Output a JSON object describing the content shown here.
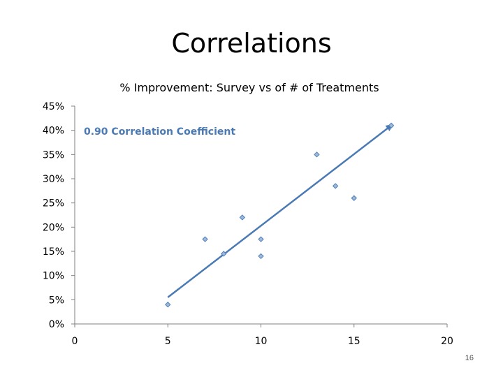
{
  "slide": {
    "title": "Correlations",
    "page_number": "16"
  },
  "chart_data": {
    "type": "scatter",
    "title": "% Improvement: Survey vs of # of Treatments",
    "xlabel": "",
    "ylabel": "",
    "xlim": [
      0,
      20
    ],
    "ylim": [
      0,
      0.45
    ],
    "x_ticks": [
      0,
      5,
      10,
      15,
      20
    ],
    "y_ticks": [
      0,
      0.05,
      0.1,
      0.15,
      0.2,
      0.25,
      0.3,
      0.35,
      0.4,
      0.45
    ],
    "x_tick_labels": [
      "0",
      "5",
      "10",
      "15",
      "20"
    ],
    "y_tick_labels": [
      "0%",
      "5%",
      "10%",
      "15%",
      "20%",
      "25%",
      "30%",
      "35%",
      "40%",
      "45%"
    ],
    "grid": false,
    "series": [
      {
        "name": "% Improvement",
        "points": [
          {
            "x": 5,
            "y": 0.04
          },
          {
            "x": 7,
            "y": 0.175
          },
          {
            "x": 8,
            "y": 0.145
          },
          {
            "x": 9,
            "y": 0.22
          },
          {
            "x": 10,
            "y": 0.175
          },
          {
            "x": 10,
            "y": 0.14
          },
          {
            "x": 13,
            "y": 0.35
          },
          {
            "x": 14,
            "y": 0.285
          },
          {
            "x": 15,
            "y": 0.26
          },
          {
            "x": 17,
            "y": 0.41
          }
        ]
      }
    ],
    "trendline": {
      "x1": 5,
      "y1": 0.055,
      "x2": 17,
      "y2": 0.41
    },
    "annotation": "0.90 Correlation Coefficient",
    "colors": {
      "marker_fill": "#9fb8d8",
      "marker_stroke": "#4f81bd",
      "trendline": "#4a7ab5",
      "annotation": "#4a7ab5",
      "axis": "#7f7f7f"
    }
  }
}
